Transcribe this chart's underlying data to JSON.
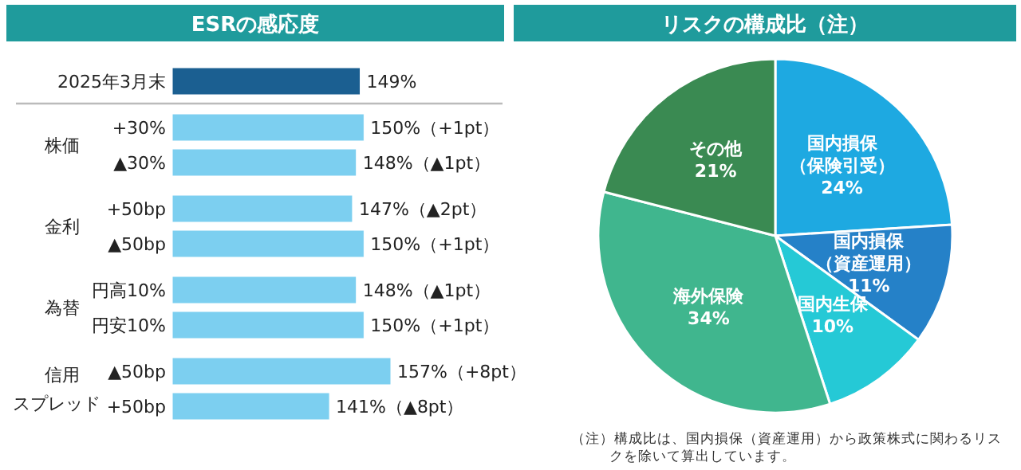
{
  "chart_data": [
    {
      "type": "bar",
      "title": "ESRの感応度",
      "orientation": "horizontal",
      "categories": [
        "2025年3月末",
        "+30%",
        "▲30%",
        "+50bp",
        "▲50bp",
        "円高10%",
        "円安10%",
        "▲50bp",
        "+50bp"
      ],
      "values": [
        149,
        150,
        148,
        147,
        150,
        148,
        150,
        157,
        141
      ],
      "colors": [
        "#1b5f91",
        "#7ccff0",
        "#7ccff0",
        "#7ccff0",
        "#7ccff0",
        "#7ccff0",
        "#7ccff0",
        "#7ccff0",
        "#7ccff0"
      ],
      "value_labels": [
        "149%",
        "150%（+1pt）",
        "148%（▲1pt）",
        "147%（▲2pt）",
        "150%（+1pt）",
        "148%（▲1pt）",
        "150%（+1pt）",
        "157%（+8pt）",
        "141%（▲8pt）"
      ],
      "xlim": [
        100,
        157
      ],
      "tick_labels": "y",
      "annotations": [
        "株価",
        "金利",
        "為替",
        "信用スプレッド"
      ]
    },
    {
      "type": "pie",
      "title": "リスクの構成比（注）",
      "categories": [
        "国内損保（保険引受）",
        "国内損保（資産運用）",
        "国内生保",
        "海外保険",
        "その他"
      ],
      "values": [
        24,
        11,
        10,
        34,
        21
      ],
      "colors": [
        "#1ea9e1",
        "#2581c8",
        "#25c9d6",
        "#40b68e",
        "#3a8a52"
      ],
      "value_labels": [
        "24%",
        "11%",
        "10%",
        "34%",
        "21%"
      ],
      "annotations": [
        "（注）構成比は、国内損保（資産運用）から政策株式に関わるリスクを除いて算出しています。"
      ]
    }
  ]
}
